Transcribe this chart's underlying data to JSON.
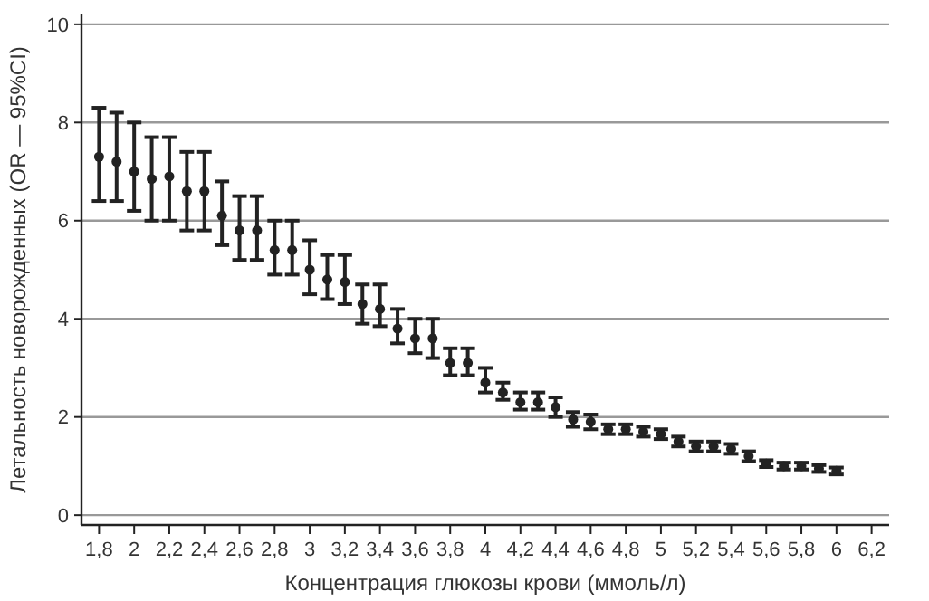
{
  "chart_data": {
    "type": "scatter",
    "xlabel": "Концентрация глюкозы крови (ммоль/л)",
    "ylabel": "Летальность новорожденных (OR — 95%CI)",
    "x": [
      1.8,
      1.9,
      2.0,
      2.1,
      2.2,
      2.3,
      2.4,
      2.5,
      2.6,
      2.7,
      2.8,
      2.9,
      3.0,
      3.1,
      3.2,
      3.3,
      3.4,
      3.5,
      3.6,
      3.7,
      3.8,
      3.9,
      4.0,
      4.1,
      4.2,
      4.3,
      4.4,
      4.5,
      4.6,
      4.7,
      4.8,
      4.9,
      5.0,
      5.1,
      5.2,
      5.3,
      5.4,
      5.5,
      5.6,
      5.7,
      5.8,
      5.9,
      6.0
    ],
    "series": [
      {
        "color": "#222222",
        "values": [
          7.3,
          7.2,
          7.0,
          6.85,
          6.9,
          6.6,
          6.6,
          6.1,
          5.8,
          5.8,
          5.4,
          5.4,
          5.0,
          4.8,
          4.75,
          4.3,
          4.2,
          3.8,
          3.6,
          3.6,
          3.1,
          3.1,
          2.7,
          2.5,
          2.3,
          2.3,
          2.2,
          1.95,
          1.9,
          1.75,
          1.75,
          1.7,
          1.65,
          1.5,
          1.4,
          1.4,
          1.35,
          1.2,
          1.05,
          1.0,
          1.0,
          0.95,
          0.9
        ],
        "errors": [
          [
            6.4,
            8.3
          ],
          [
            6.4,
            8.2
          ],
          [
            6.2,
            8.0
          ],
          [
            6.0,
            7.7
          ],
          [
            6.0,
            7.7
          ],
          [
            5.8,
            7.4
          ],
          [
            5.8,
            7.4
          ],
          [
            5.5,
            6.8
          ],
          [
            5.2,
            6.5
          ],
          [
            5.2,
            6.5
          ],
          [
            4.9,
            6.0
          ],
          [
            4.9,
            6.0
          ],
          [
            4.5,
            5.6
          ],
          [
            4.4,
            5.3
          ],
          [
            4.3,
            5.3
          ],
          [
            3.9,
            4.7
          ],
          [
            3.85,
            4.7
          ],
          [
            3.5,
            4.2
          ],
          [
            3.3,
            4.0
          ],
          [
            3.2,
            4.0
          ],
          [
            2.85,
            3.4
          ],
          [
            2.85,
            3.4
          ],
          [
            2.5,
            3.0
          ],
          [
            2.35,
            2.7
          ],
          [
            2.15,
            2.5
          ],
          [
            2.15,
            2.5
          ],
          [
            2.0,
            2.4
          ],
          [
            1.8,
            2.1
          ],
          [
            1.75,
            2.05
          ],
          [
            1.65,
            1.85
          ],
          [
            1.65,
            1.85
          ],
          [
            1.6,
            1.8
          ],
          [
            1.55,
            1.75
          ],
          [
            1.4,
            1.6
          ],
          [
            1.3,
            1.5
          ],
          [
            1.3,
            1.5
          ],
          [
            1.25,
            1.45
          ],
          [
            1.1,
            1.3
          ],
          [
            0.98,
            1.12
          ],
          [
            0.93,
            1.07
          ],
          [
            0.93,
            1.07
          ],
          [
            0.88,
            1.02
          ],
          [
            0.83,
            0.97
          ]
        ]
      }
    ],
    "xlim": [
      1.7,
      6.3
    ],
    "ylim": [
      -0.2,
      10.2
    ],
    "xticks": [
      {
        "value": 1.8,
        "label": "1,8"
      },
      2,
      {
        "value": 2.2,
        "label": "2,2"
      },
      {
        "value": 2.4,
        "label": "2,4"
      },
      {
        "value": 2.6,
        "label": "2,6"
      },
      {
        "value": 2.8,
        "label": "2,8"
      },
      3,
      {
        "value": 3.2,
        "label": "3,2"
      },
      {
        "value": 3.4,
        "label": "3,4"
      },
      {
        "value": 3.6,
        "label": "3,6"
      },
      {
        "value": 3.8,
        "label": "3,8"
      },
      4,
      {
        "value": 4.2,
        "label": "4,2"
      },
      {
        "value": 4.4,
        "label": "4,4"
      },
      {
        "value": 4.6,
        "label": "4,6"
      },
      {
        "value": 4.8,
        "label": "4,8"
      },
      5,
      {
        "value": 5.2,
        "label": "5,2"
      },
      {
        "value": 5.4,
        "label": "5,4"
      },
      {
        "value": 5.6,
        "label": "5,6"
      },
      {
        "value": 5.8,
        "label": "5,8"
      },
      6,
      {
        "value": 6.2,
        "label": "6,2"
      }
    ],
    "yticks": [
      0,
      2,
      4,
      6,
      8,
      10
    ],
    "grid": "y",
    "marker": "circle"
  }
}
